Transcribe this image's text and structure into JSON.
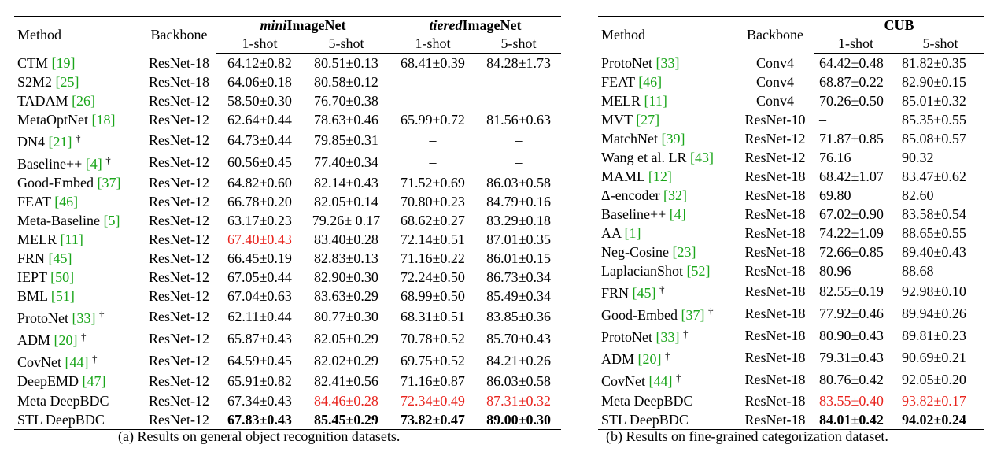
{
  "left": {
    "headers": {
      "method": "Method",
      "backbone": "Backbone",
      "groups": [
        {
          "italic": "mini",
          "rest": "ImageNet"
        },
        {
          "italic": "tiered",
          "rest": "ImageNet"
        }
      ],
      "shots": [
        "1-shot",
        "5-shot",
        "1-shot",
        "5-shot"
      ]
    },
    "rows": [
      {
        "method": "CTM",
        "cite": "[19]",
        "backbone": "ResNet-18",
        "cells": [
          "64.12±0.82",
          "80.51±0.13",
          "68.41±0.39",
          "84.28±1.73"
        ]
      },
      {
        "method": "S2M2",
        "cite": "[25]",
        "backbone": "ResNet-18",
        "cells": [
          "64.06±0.18",
          "80.58±0.12",
          "–",
          "–"
        ]
      },
      {
        "method": "TADAM",
        "cite": "[26]",
        "backbone": "ResNet-12",
        "cells": [
          "58.50±0.30",
          "76.70±0.38",
          "–",
          "–"
        ]
      },
      {
        "method": "MetaOptNet",
        "cite": "[18]",
        "backbone": "ResNet-12",
        "cells": [
          "62.64±0.44",
          "78.63±0.46",
          "65.99±0.72",
          "81.56±0.63"
        ]
      },
      {
        "method": "DN4",
        "cite": "[21]",
        "dagger": "†",
        "backbone": "ResNet-12",
        "cells": [
          "64.73±0.44",
          "79.85±0.31",
          "–",
          "–"
        ]
      },
      {
        "method": "Baseline++",
        "cite": "[4]",
        "dagger": "†",
        "backbone": "ResNet-12",
        "cells": [
          "60.56±0.45",
          "77.40±0.34",
          "–",
          "–"
        ]
      },
      {
        "method": "Good-Embed",
        "cite": "[37]",
        "backbone": "ResNet-12",
        "cells": [
          "64.82±0.60",
          "82.14±0.43",
          "71.52±0.69",
          "86.03±0.58"
        ]
      },
      {
        "method": "FEAT",
        "cite": "[46]",
        "backbone": "ResNet-12",
        "cells": [
          "66.78±0.20",
          "82.05±0.14",
          "70.80±0.23",
          "84.79±0.16"
        ]
      },
      {
        "method": "Meta-Baseline",
        "cite": "[5]",
        "backbone": "ResNet-12",
        "cells": [
          "63.17±0.23",
          "79.26± 0.17",
          "68.62±0.27",
          "83.29±0.18"
        ]
      },
      {
        "method": "MELR",
        "cite": "[11]",
        "backbone": "ResNet-12",
        "cells": [
          {
            "text": "67.40±0.43",
            "style": "red"
          },
          "83.40±0.28",
          "72.14±0.51",
          "87.01±0.35"
        ]
      },
      {
        "method": "FRN",
        "cite": "[45]",
        "backbone": "ResNet-12",
        "cells": [
          "66.45±0.19",
          "82.83±0.13",
          "71.16±0.22",
          "86.01±0.15"
        ]
      },
      {
        "method": "IEPT",
        "cite": "[50]",
        "backbone": "ResNet-12",
        "cells": [
          "67.05±0.44",
          "82.90±0.30",
          "72.24±0.50",
          "86.73±0.34"
        ]
      },
      {
        "method": "BML",
        "cite": "[51]",
        "backbone": "ResNet-12",
        "cells": [
          "67.04±0.63",
          "83.63±0.29",
          "68.99±0.50",
          "85.49±0.34"
        ]
      },
      {
        "method": "ProtoNet",
        "cite": "[33]",
        "dagger": "†",
        "backbone": "ResNet-12",
        "cells": [
          "62.11±0.44",
          "80.77±0.30",
          "68.31±0.51",
          "83.85±0.36"
        ]
      },
      {
        "method": "ADM",
        "cite": "[20]",
        "dagger": "†",
        "backbone": "ResNet-12",
        "cells": [
          "65.87±0.43",
          "82.05±0.29",
          "70.78±0.52",
          "85.70±0.43"
        ]
      },
      {
        "method": "CovNet",
        "cite": "[44]",
        "dagger": "†",
        "backbone": "ResNet-12",
        "cells": [
          "64.59±0.45",
          "82.02±0.29",
          "69.75±0.52",
          "84.21±0.26"
        ]
      },
      {
        "method": "DeepEMD",
        "cite": "[47]",
        "backbone": "ResNet-12",
        "cells": [
          "65.91±0.82",
          "82.41±0.56",
          "71.16±0.87",
          "86.03±0.58"
        ]
      }
    ],
    "ours": [
      {
        "method": "Meta DeepBDC",
        "backbone": "ResNet-12",
        "cells": [
          "67.34±0.43",
          {
            "text": "84.46±0.28",
            "style": "red"
          },
          {
            "text": "72.34±0.49",
            "style": "red"
          },
          {
            "text": "87.31±0.32",
            "style": "red"
          }
        ]
      },
      {
        "method": "STL DeepBDC",
        "backbone": "ResNet-12",
        "cells": [
          {
            "text": "67.83±0.43",
            "style": "bold"
          },
          {
            "text": "85.45±0.29",
            "style": "bold"
          },
          {
            "text": "73.82±0.47",
            "style": "bold"
          },
          {
            "text": "89.00±0.30",
            "style": "bold"
          }
        ]
      }
    ],
    "caption": "(a)  Results on general object recognition datasets."
  },
  "right": {
    "headers": {
      "method": "Method",
      "backbone": "Backbone",
      "group": "CUB",
      "shots": [
        "1-shot",
        "5-shot"
      ]
    },
    "rows": [
      {
        "method": "ProtoNet",
        "cite": "[33]",
        "backbone": "Conv4",
        "cells": [
          "64.42±0.48",
          "81.82±0.35"
        ]
      },
      {
        "method": "FEAT",
        "cite": "[46]",
        "backbone": "Conv4",
        "cells": [
          "68.87±0.22",
          "82.90±0.15"
        ]
      },
      {
        "method": "MELR",
        "cite": "[11]",
        "backbone": "Conv4",
        "cells": [
          "70.26±0.50",
          "85.01±0.32"
        ]
      },
      {
        "method": "MVT",
        "cite": "[27]",
        "backbone": "ResNet-10",
        "cells": [
          "–",
          "85.35±0.55"
        ]
      },
      {
        "method": "MatchNet",
        "cite": "[39]",
        "backbone": "ResNet-12",
        "cells": [
          "71.87±0.85",
          "85.08±0.57"
        ]
      },
      {
        "method": "Wang et al. LR",
        "cite": "[43]",
        "backbone": "ResNet-12",
        "cells": [
          "76.16",
          "90.32"
        ]
      },
      {
        "method": "MAML",
        "cite": "[12]",
        "backbone": "ResNet-18",
        "cells": [
          "68.42±1.07",
          "83.47±0.62"
        ]
      },
      {
        "method": "Δ-encoder",
        "cite": "[32]",
        "backbone": "ResNet-18",
        "cells": [
          "69.80",
          "82.60"
        ]
      },
      {
        "method": "Baseline++",
        "cite": "[4]",
        "backbone": "ResNet-18",
        "cells": [
          "67.02±0.90",
          "83.58±0.54"
        ]
      },
      {
        "method": "AA",
        "cite": "[1]",
        "backbone": "ResNet-18",
        "cells": [
          "74.22±1.09",
          "88.65±0.55"
        ]
      },
      {
        "method": "Neg-Cosine",
        "cite": "[23]",
        "backbone": "ResNet-18",
        "cells": [
          "72.66±0.85",
          "89.40±0.43"
        ]
      },
      {
        "method": "LaplacianShot",
        "cite": "[52]",
        "backbone": "ResNet-18",
        "cells": [
          "80.96",
          "88.68"
        ]
      },
      {
        "method": "FRN",
        "cite": "[45]",
        "dagger": "†",
        "backbone": "ResNet-18",
        "cells": [
          "82.55±0.19",
          "92.98±0.10"
        ]
      },
      {
        "method": "Good-Embed",
        "cite": "[37]",
        "dagger": "†",
        "backbone": "ResNet-18",
        "cells": [
          "77.92±0.46",
          "89.94±0.26"
        ]
      },
      {
        "method": "ProtoNet",
        "cite": "[33]",
        "dagger": "†",
        "backbone": "ResNet-18",
        "cells": [
          "80.90±0.43",
          "89.81±0.23"
        ]
      },
      {
        "method": "ADM",
        "cite": "[20]",
        "dagger": "†",
        "backbone": "ResNet-18",
        "cells": [
          "79.31±0.43",
          "90.69±0.21"
        ]
      },
      {
        "method": "CovNet",
        "cite": "[44]",
        "dagger": "†",
        "backbone": "ResNet-18",
        "cells": [
          "80.76±0.42",
          "92.05±0.20"
        ]
      }
    ],
    "ours": [
      {
        "method": "Meta DeepBDC",
        "backbone": "ResNet-18",
        "cells": [
          {
            "text": "83.55±0.40",
            "style": "red"
          },
          {
            "text": "93.82±0.17",
            "style": "red"
          }
        ]
      },
      {
        "method": "STL DeepBDC",
        "backbone": "ResNet-18",
        "cells": [
          {
            "text": "84.01±0.42",
            "style": "bold"
          },
          {
            "text": "94.02±0.24",
            "style": "bold"
          }
        ]
      }
    ],
    "caption": "(b) Results on fine-grained categorization dataset."
  }
}
